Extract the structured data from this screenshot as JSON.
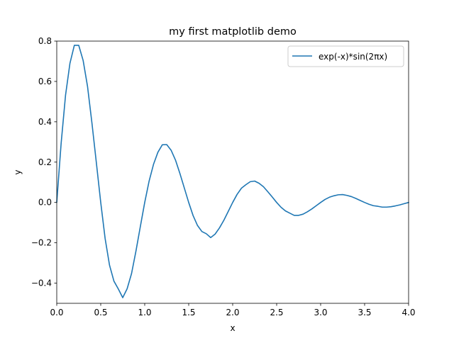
{
  "chart_data": {
    "type": "line",
    "title": "my first matplotlib demo",
    "xlabel": "x",
    "ylabel": "y",
    "xlim": [
      0.0,
      4.0
    ],
    "ylim": [
      -0.5,
      0.8
    ],
    "xticks": [
      0.0,
      0.5,
      1.0,
      1.5,
      2.0,
      2.5,
      3.0,
      3.5,
      4.0
    ],
    "xtick_labels": [
      "0.0",
      "0.5",
      "1.0",
      "1.5",
      "2.0",
      "2.5",
      "3.0",
      "3.5",
      "4.0"
    ],
    "yticks": [
      -0.4,
      -0.2,
      0.0,
      0.2,
      0.4,
      0.6,
      0.8
    ],
    "ytick_labels": [
      "−0.4",
      "−0.2",
      "0.0",
      "0.2",
      "0.4",
      "0.6",
      "0.8"
    ],
    "grid": false,
    "legend": {
      "placement": "top-right",
      "entries": [
        "exp(-x)*sin(2πx)"
      ]
    },
    "series": [
      {
        "name": "exp(-x)*sin(2πx)",
        "color": "#1f77b4",
        "x": [
          0.0,
          0.05,
          0.1,
          0.15,
          0.2,
          0.25,
          0.3,
          0.35,
          0.4,
          0.45,
          0.5,
          0.55,
          0.6,
          0.65,
          0.7,
          0.75,
          0.8,
          0.85,
          0.9,
          0.95,
          1.0,
          1.05,
          1.1,
          1.15,
          1.2,
          1.25,
          1.3,
          1.35,
          1.4,
          1.45,
          1.5,
          1.55,
          1.6,
          1.65,
          1.7,
          1.75,
          1.8,
          1.85,
          1.9,
          1.95,
          2.0,
          2.05,
          2.1,
          2.15,
          2.2,
          2.25,
          2.3,
          2.35,
          2.4,
          2.45,
          2.5,
          2.55,
          2.6,
          2.65,
          2.7,
          2.75,
          2.8,
          2.85,
          2.9,
          2.95,
          3.0,
          3.05,
          3.1,
          3.15,
          3.2,
          3.25,
          3.3,
          3.35,
          3.4,
          3.45,
          3.5,
          3.55,
          3.6,
          3.65,
          3.7,
          3.75,
          3.8,
          3.85,
          3.9,
          3.95,
          4.0
        ],
        "y": [
          0.0,
          0.294,
          0.532,
          0.69,
          0.779,
          0.779,
          0.704,
          0.575,
          0.394,
          0.198,
          0.0,
          -0.179,
          -0.311,
          -0.39,
          -0.429,
          -0.472,
          -0.428,
          -0.353,
          -0.242,
          -0.12,
          0.0,
          0.106,
          0.189,
          0.249,
          0.286,
          0.287,
          0.259,
          0.21,
          0.144,
          0.072,
          0.0,
          -0.065,
          -0.114,
          -0.144,
          -0.155,
          -0.174,
          -0.157,
          -0.126,
          -0.088,
          -0.044,
          0.0,
          0.04,
          0.071,
          0.088,
          0.103,
          0.106,
          0.095,
          0.078,
          0.053,
          0.027,
          0.0,
          -0.024,
          -0.042,
          -0.053,
          -0.064,
          -0.064,
          -0.058,
          -0.046,
          -0.032,
          -0.016,
          0.0,
          0.015,
          0.026,
          0.033,
          0.038,
          0.039,
          0.035,
          0.029,
          0.02,
          0.01,
          0.0,
          -0.009,
          -0.016,
          -0.019,
          -0.023,
          -0.023,
          -0.021,
          -0.017,
          -0.012,
          -0.006,
          0.0
        ]
      }
    ]
  }
}
